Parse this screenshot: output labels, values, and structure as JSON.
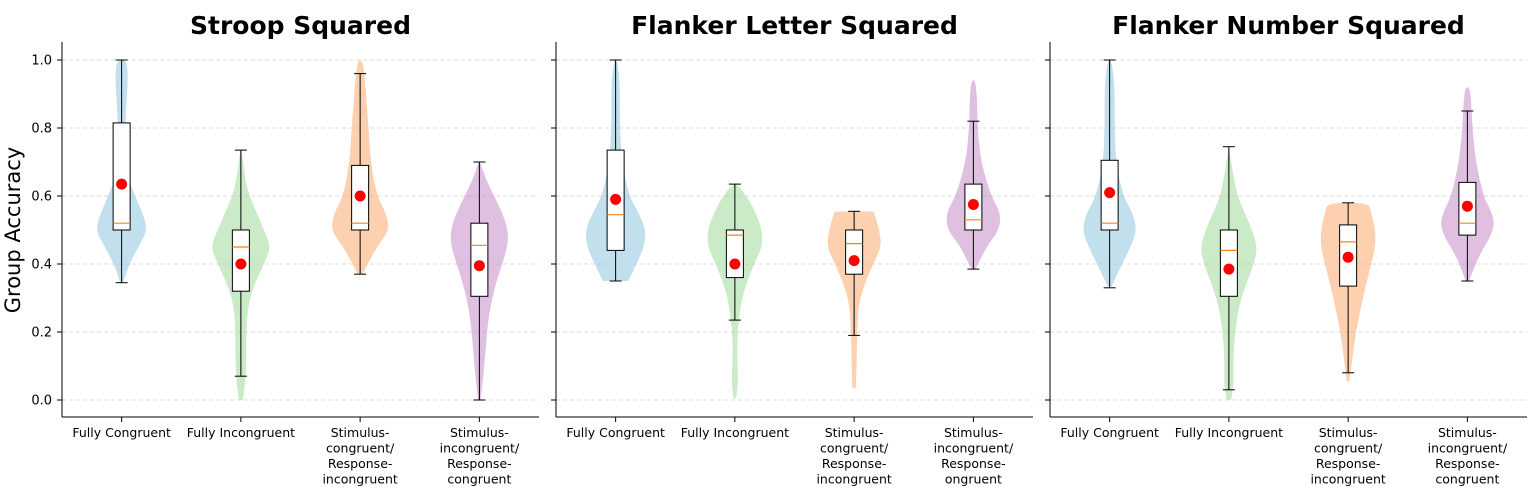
{
  "chart_data": {
    "type": "violin",
    "ylabel": "Group Accuracy",
    "ylim": [
      -0.05,
      1.05
    ],
    "yticks": [
      "0.0",
      "0.2",
      "0.4",
      "0.6",
      "0.8",
      "1.0"
    ],
    "grid": "horizontal dashed",
    "colors": [
      "#8fc4e0",
      "#9ed99a",
      "#fcab6f",
      "#c48dc8"
    ],
    "panels": [
      {
        "title": "Stroop Squared",
        "categories": [
          [
            "Fully Congruent"
          ],
          [
            "Fully Incongruent"
          ],
          [
            "Stimulus-",
            "congruent/",
            "Response-",
            "incongruent"
          ],
          [
            "Stimulus-",
            "incongruent/",
            "Response-",
            "congruent"
          ]
        ],
        "groups": [
          {
            "min": 0.345,
            "q1": 0.5,
            "median": 0.52,
            "q3": 0.815,
            "max": 1.0,
            "mean": 0.635,
            "violin": [
              [
                0.345,
                0.03
              ],
              [
                0.4,
                0.18
              ],
              [
                0.45,
                0.4
              ],
              [
                0.5,
                0.62
              ],
              [
                0.55,
                0.5
              ],
              [
                0.6,
                0.32
              ],
              [
                0.65,
                0.16
              ],
              [
                0.7,
                0.09
              ],
              [
                0.8,
                0.08
              ],
              [
                0.9,
                0.13
              ],
              [
                0.95,
                0.15
              ],
              [
                1.0,
                0.12
              ]
            ]
          },
          {
            "min": 0.07,
            "q1": 0.32,
            "median": 0.45,
            "q3": 0.5,
            "max": 0.735,
            "mean": 0.4,
            "violin": [
              [
                0.0,
                0.05
              ],
              [
                0.07,
                0.12
              ],
              [
                0.15,
                0.13
              ],
              [
                0.25,
                0.14
              ],
              [
                0.32,
                0.25
              ],
              [
                0.4,
                0.55
              ],
              [
                0.45,
                0.72
              ],
              [
                0.5,
                0.55
              ],
              [
                0.55,
                0.38
              ],
              [
                0.6,
                0.2
              ],
              [
                0.65,
                0.1
              ],
              [
                0.735,
                0.02
              ]
            ]
          },
          {
            "min": 0.37,
            "q1": 0.5,
            "median": 0.52,
            "q3": 0.69,
            "max": 0.96,
            "mean": 0.6,
            "violin": [
              [
                0.37,
                0.06
              ],
              [
                0.4,
                0.18
              ],
              [
                0.45,
                0.4
              ],
              [
                0.5,
                0.7
              ],
              [
                0.55,
                0.62
              ],
              [
                0.6,
                0.4
              ],
              [
                0.7,
                0.25
              ],
              [
                0.8,
                0.2
              ],
              [
                0.9,
                0.14
              ],
              [
                0.96,
                0.1
              ],
              [
                1.0,
                0.05
              ]
            ]
          },
          {
            "min": 0.0,
            "q1": 0.305,
            "median": 0.455,
            "q3": 0.52,
            "max": 0.7,
            "mean": 0.395,
            "violin": [
              [
                0.0,
                0.03
              ],
              [
                0.05,
                0.08
              ],
              [
                0.15,
                0.15
              ],
              [
                0.25,
                0.22
              ],
              [
                0.35,
                0.4
              ],
              [
                0.45,
                0.68
              ],
              [
                0.5,
                0.68
              ],
              [
                0.55,
                0.55
              ],
              [
                0.6,
                0.35
              ],
              [
                0.65,
                0.15
              ],
              [
                0.7,
                0.02
              ]
            ]
          }
        ]
      },
      {
        "title": "Flanker Letter Squared",
        "categories": [
          [
            "Fully Congruent"
          ],
          [
            "Fully Incongruent"
          ],
          [
            "Stimulus-",
            "congruent/",
            "Response-",
            "incongruent"
          ],
          [
            "Stimulus-",
            "incongruent/",
            "Response-",
            "ongruent"
          ]
        ],
        "groups": [
          {
            "min": 0.35,
            "q1": 0.44,
            "median": 0.545,
            "q3": 0.735,
            "max": 1.0,
            "mean": 0.59,
            "violin": [
              [
                0.35,
                0.3
              ],
              [
                0.4,
                0.5
              ],
              [
                0.45,
                0.68
              ],
              [
                0.5,
                0.72
              ],
              [
                0.55,
                0.55
              ],
              [
                0.6,
                0.32
              ],
              [
                0.7,
                0.15
              ],
              [
                0.8,
                0.1
              ],
              [
                0.9,
                0.1
              ],
              [
                0.95,
                0.09
              ],
              [
                1.0,
                0.03
              ]
            ]
          },
          {
            "min": 0.235,
            "q1": 0.36,
            "median": 0.485,
            "q3": 0.5,
            "max": 0.635,
            "mean": 0.4,
            "violin": [
              [
                0.005,
                0.03
              ],
              [
                0.05,
                0.08
              ],
              [
                0.1,
                0.06
              ],
              [
                0.18,
                0.05
              ],
              [
                0.3,
                0.15
              ],
              [
                0.4,
                0.45
              ],
              [
                0.45,
                0.65
              ],
              [
                0.5,
                0.65
              ],
              [
                0.55,
                0.5
              ],
              [
                0.6,
                0.28
              ],
              [
                0.635,
                0.05
              ]
            ]
          },
          {
            "min": 0.19,
            "q1": 0.37,
            "median": 0.46,
            "q3": 0.5,
            "max": 0.555,
            "mean": 0.41,
            "violin": [
              [
                0.035,
                0.04
              ],
              [
                0.1,
                0.06
              ],
              [
                0.2,
                0.07
              ],
              [
                0.3,
                0.12
              ],
              [
                0.4,
                0.45
              ],
              [
                0.45,
                0.65
              ],
              [
                0.5,
                0.6
              ],
              [
                0.55,
                0.48
              ],
              [
                0.555,
                0.45
              ]
            ]
          },
          {
            "min": 0.385,
            "q1": 0.5,
            "median": 0.53,
            "q3": 0.635,
            "max": 0.82,
            "mean": 0.575,
            "violin": [
              [
                0.385,
                0.05
              ],
              [
                0.45,
                0.3
              ],
              [
                0.5,
                0.62
              ],
              [
                0.55,
                0.65
              ],
              [
                0.6,
                0.42
              ],
              [
                0.7,
                0.18
              ],
              [
                0.8,
                0.1
              ],
              [
                0.88,
                0.09
              ],
              [
                0.94,
                0.05
              ]
            ]
          }
        ]
      },
      {
        "title": "Flanker Number Squared",
        "categories": [
          [
            "Fully Congruent"
          ],
          [
            "Fully Incongruent"
          ],
          [
            "Stimulus-",
            "congruent/",
            "Response-",
            "incongruent"
          ],
          [
            "Stimulus-",
            "incongruent/",
            "Response-",
            "congruent"
          ]
        ],
        "groups": [
          {
            "min": 0.33,
            "q1": 0.5,
            "median": 0.52,
            "q3": 0.705,
            "max": 1.0,
            "mean": 0.61,
            "violin": [
              [
                0.33,
                0.03
              ],
              [
                0.4,
                0.3
              ],
              [
                0.45,
                0.5
              ],
              [
                0.5,
                0.65
              ],
              [
                0.55,
                0.55
              ],
              [
                0.6,
                0.32
              ],
              [
                0.7,
                0.15
              ],
              [
                0.8,
                0.12
              ],
              [
                0.9,
                0.12
              ],
              [
                0.95,
                0.1
              ],
              [
                1.0,
                0.04
              ]
            ]
          },
          {
            "min": 0.03,
            "q1": 0.305,
            "median": 0.44,
            "q3": 0.5,
            "max": 0.745,
            "mean": 0.385,
            "violin": [
              [
                0.0,
                0.05
              ],
              [
                0.05,
                0.12
              ],
              [
                0.1,
                0.1
              ],
              [
                0.2,
                0.14
              ],
              [
                0.3,
                0.28
              ],
              [
                0.4,
                0.6
              ],
              [
                0.45,
                0.68
              ],
              [
                0.5,
                0.55
              ],
              [
                0.55,
                0.38
              ],
              [
                0.6,
                0.2
              ],
              [
                0.7,
                0.05
              ],
              [
                0.745,
                0.01
              ]
            ]
          },
          {
            "min": 0.08,
            "q1": 0.335,
            "median": 0.465,
            "q3": 0.515,
            "max": 0.58,
            "mean": 0.42,
            "violin": [
              [
                0.055,
                0.03
              ],
              [
                0.1,
                0.08
              ],
              [
                0.2,
                0.18
              ],
              [
                0.3,
                0.35
              ],
              [
                0.4,
                0.55
              ],
              [
                0.45,
                0.65
              ],
              [
                0.5,
                0.65
              ],
              [
                0.55,
                0.55
              ],
              [
                0.58,
                0.5
              ]
            ]
          },
          {
            "min": 0.35,
            "q1": 0.485,
            "median": 0.52,
            "q3": 0.64,
            "max": 0.85,
            "mean": 0.57,
            "violin": [
              [
                0.35,
                0.04
              ],
              [
                0.42,
                0.25
              ],
              [
                0.48,
                0.55
              ],
              [
                0.52,
                0.65
              ],
              [
                0.56,
                0.55
              ],
              [
                0.6,
                0.38
              ],
              [
                0.7,
                0.2
              ],
              [
                0.8,
                0.12
              ],
              [
                0.88,
                0.09
              ],
              [
                0.92,
                0.05
              ]
            ]
          }
        ]
      }
    ]
  }
}
